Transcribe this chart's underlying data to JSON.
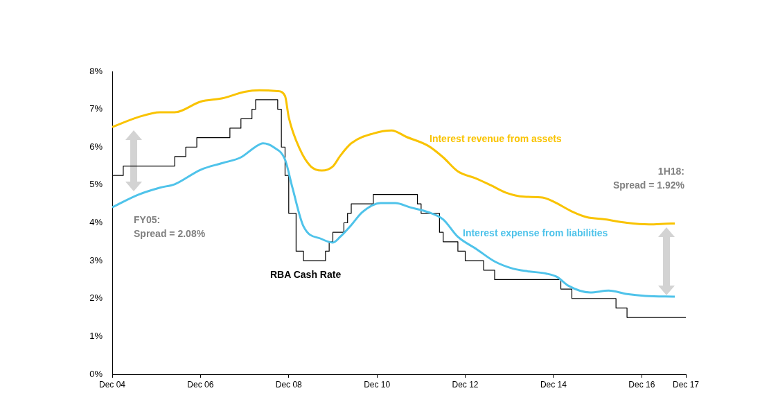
{
  "chart_data": {
    "type": "line",
    "xlim": [
      "2004-12",
      "2017-12"
    ],
    "xticks": [
      {
        "value": "2004-12",
        "label": "Dec 04"
      },
      {
        "value": "2006-12",
        "label": "Dec 06"
      },
      {
        "value": "2008-12",
        "label": "Dec 08"
      },
      {
        "value": "2010-12",
        "label": "Dec 10"
      },
      {
        "value": "2012-12",
        "label": "Dec 12"
      },
      {
        "value": "2014-12",
        "label": "Dec 14"
      },
      {
        "value": "2016-12",
        "label": "Dec 16"
      },
      {
        "value": "2017-12",
        "label": "Dec 17"
      }
    ],
    "ylim": [
      0,
      8
    ],
    "yticks": [
      {
        "value": 0,
        "label": "0%"
      },
      {
        "value": 1,
        "label": "1%"
      },
      {
        "value": 2,
        "label": "2%"
      },
      {
        "value": 3,
        "label": "3%"
      },
      {
        "value": 4,
        "label": "4%"
      },
      {
        "value": 5,
        "label": "5%"
      },
      {
        "value": 6,
        "label": "6%"
      },
      {
        "value": 7,
        "label": "7%"
      },
      {
        "value": 8,
        "label": "8%"
      }
    ],
    "grid": false,
    "legend": false,
    "series": [
      {
        "name": "Interest revenue from assets",
        "color": "#f9c300",
        "x": [
          "2004-12",
          "2005-07",
          "2006-01",
          "2006-05",
          "2006-12",
          "2007-06",
          "2007-12",
          "2008-04",
          "2008-09",
          "2008-11",
          "2008-12",
          "2009-03",
          "2009-06",
          "2009-09",
          "2009-12",
          "2010-02",
          "2010-05",
          "2010-11",
          "2011-04",
          "2011-08",
          "2012-02",
          "2012-06",
          "2012-10",
          "2013-03",
          "2013-07",
          "2013-11",
          "2014-04",
          "2014-09",
          "2014-12",
          "2015-05",
          "2015-09",
          "2016-02",
          "2016-08",
          "2017-02",
          "2017-08",
          "2017-09"
        ],
        "values": [
          6.53,
          6.79,
          6.92,
          6.92,
          7.2,
          7.29,
          7.46,
          7.5,
          7.48,
          7.35,
          6.79,
          5.95,
          5.49,
          5.38,
          5.49,
          5.77,
          6.1,
          6.36,
          6.44,
          6.27,
          6.03,
          5.73,
          5.36,
          5.17,
          4.99,
          4.8,
          4.69,
          4.67,
          4.56,
          4.3,
          4.15,
          4.09,
          4.0,
          3.96,
          3.98,
          3.98
        ]
      },
      {
        "name": "Interest expense from liabilities",
        "color": "#4fc3ea",
        "x": [
          "2004-12",
          "2005-07",
          "2006-01",
          "2006-05",
          "2006-12",
          "2007-06",
          "2007-11",
          "2008-03",
          "2008-05",
          "2008-08",
          "2008-11",
          "2009-01",
          "2009-04",
          "2009-09",
          "2009-12",
          "2010-02",
          "2010-05",
          "2010-08",
          "2011-01",
          "2011-05",
          "2011-09",
          "2012-02",
          "2012-06",
          "2012-10",
          "2013-03",
          "2013-08",
          "2014-01",
          "2014-05",
          "2014-10",
          "2015-01",
          "2015-04",
          "2015-10",
          "2016-03",
          "2016-08",
          "2017-01",
          "2017-09"
        ],
        "values": [
          4.41,
          4.74,
          4.93,
          5.02,
          5.4,
          5.58,
          5.73,
          6.01,
          6.1,
          5.99,
          5.67,
          4.93,
          3.91,
          3.57,
          3.48,
          3.63,
          3.94,
          4.28,
          4.52,
          4.52,
          4.41,
          4.28,
          4.09,
          3.63,
          3.31,
          2.98,
          2.79,
          2.72,
          2.66,
          2.57,
          2.34,
          2.16,
          2.21,
          2.12,
          2.07,
          2.05
        ]
      },
      {
        "name": "RBA Cash Rate",
        "type": "step",
        "color": "#000000",
        "x": [
          "2004-12",
          "2005-03",
          "2006-05",
          "2006-08",
          "2006-11",
          "2007-08",
          "2007-11",
          "2008-02",
          "2008-03",
          "2008-09",
          "2008-10",
          "2008-11",
          "2008-12",
          "2009-02",
          "2009-04",
          "2009-10",
          "2009-11",
          "2009-12",
          "2010-03",
          "2010-04",
          "2010-05",
          "2010-11",
          "2011-11",
          "2011-12",
          "2012-05",
          "2012-06",
          "2012-10",
          "2012-12",
          "2013-05",
          "2013-08",
          "2015-02",
          "2015-05",
          "2016-05",
          "2016-08",
          "2017-12"
        ],
        "values": [
          5.25,
          5.5,
          5.75,
          6.0,
          6.25,
          6.5,
          6.75,
          7.0,
          7.25,
          7.0,
          6.0,
          5.25,
          4.25,
          3.25,
          3.0,
          3.25,
          3.5,
          3.75,
          4.0,
          4.25,
          4.5,
          4.75,
          4.5,
          4.25,
          3.75,
          3.5,
          3.25,
          3.0,
          2.75,
          2.5,
          2.25,
          2.0,
          1.75,
          1.5,
          1.5
        ]
      }
    ],
    "annotations": [
      "FY05:\nSpread = 2.08%",
      "1H18:\nSpread = 1.92%"
    ]
  }
}
